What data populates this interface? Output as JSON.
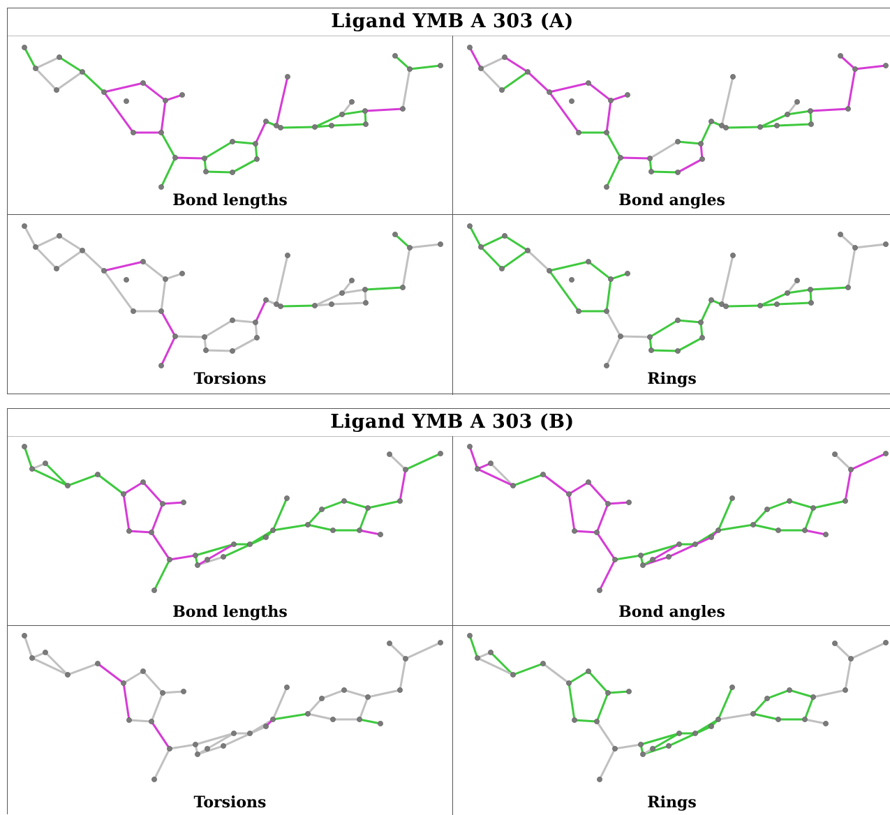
{
  "blocks": [
    {
      "title": "Ligand YMB A 303 (A)",
      "panels": [
        {
          "caption": "Bond lengths"
        },
        {
          "caption": "Bond angles"
        },
        {
          "caption": "Torsions"
        },
        {
          "caption": "Rings"
        }
      ]
    },
    {
      "title": "Ligand YMB A 303 (B)",
      "panels": [
        {
          "caption": "Bond lengths"
        },
        {
          "caption": "Bond angles"
        },
        {
          "caption": "Torsions"
        },
        {
          "caption": "Rings"
        }
      ]
    }
  ],
  "colors": {
    "good": "#3ec93e",
    "bad": "#d63bd6",
    "neutral": "#c0c0c0",
    "atom": "#7a7a7a"
  }
}
